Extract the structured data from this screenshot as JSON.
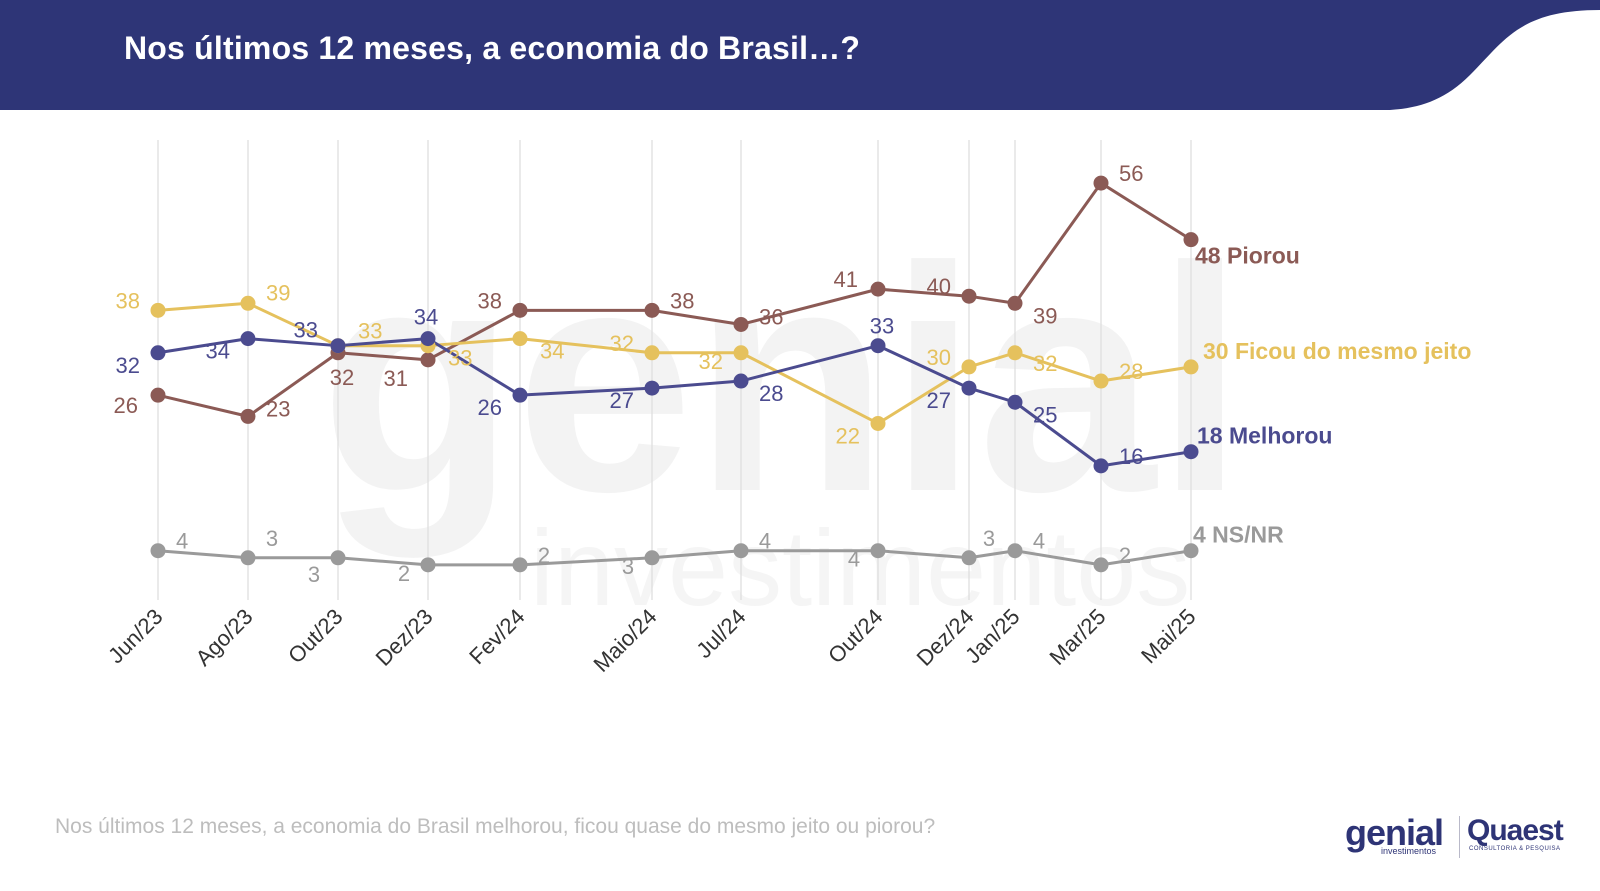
{
  "title": "Nos últimos 12 meses, a economia do Brasil…?",
  "footnote": "Nos últimos 12 meses, a economia do Brasil melhorou, ficou quase do mesmo jeito ou piorou?",
  "logos": {
    "genial": "genial",
    "genial_sub": "investimentos",
    "quaest": "Quaest",
    "quaest_sub": "CONSULTORIA & PESQUISA"
  },
  "watermark": {
    "main": "genial",
    "sub": "investimentos"
  },
  "colors": {
    "header": "#2e3577",
    "piorou": "#8b5a55",
    "ficou": "#e5c15d",
    "melhorou": "#4b4b8f",
    "nsnr": "#9a9a9a",
    "grid": "#dddddd"
  },
  "chart_data": {
    "type": "line",
    "categories": [
      "Jun/23",
      "Ago/23",
      "Out/23",
      "Dez/23",
      "Fev/24",
      "Maio/24",
      "Jul/24",
      "Out/24",
      "Dez/24",
      "Jan/25",
      "Mar/25",
      "Mai/25"
    ],
    "series": [
      {
        "key": "piorou",
        "name": "Piorou",
        "end_label": "48 Piorou",
        "values": [
          26,
          23,
          32,
          31,
          38,
          38,
          36,
          41,
          40,
          39,
          56,
          48
        ]
      },
      {
        "key": "ficou",
        "name": "Ficou do mesmo jeito",
        "end_label": "30 Ficou do mesmo jeito",
        "values": [
          38,
          39,
          33,
          33,
          34,
          32,
          32,
          22,
          30,
          32,
          28,
          30
        ]
      },
      {
        "key": "melhorou",
        "name": "Melhorou",
        "end_label": "18 Melhorou",
        "values": [
          32,
          34,
          33,
          34,
          26,
          27,
          28,
          33,
          27,
          25,
          16,
          18
        ]
      },
      {
        "key": "nsnr",
        "name": "NS/NR",
        "end_label": "4 NS/NR",
        "values": [
          4,
          3,
          3,
          2,
          2,
          3,
          4,
          4,
          3,
          4,
          2,
          4
        ]
      }
    ],
    "title": "Nos últimos 12 meses, a economia do Brasil…?",
    "xlabel": "",
    "ylabel": "",
    "grid": "vertical",
    "legend": "inline at line ends"
  }
}
